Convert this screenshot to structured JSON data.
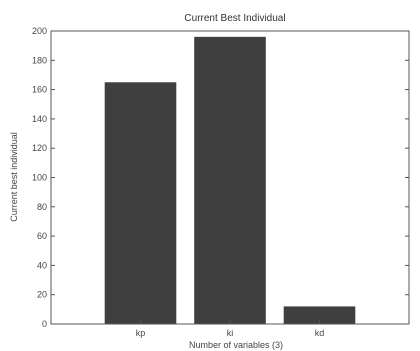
{
  "chart_data": {
    "type": "bar",
    "title": "Current Best Individual",
    "xlabel": "Number of variables (3)",
    "ylabel": "Current best individual",
    "categories": [
      "kp",
      "ki",
      "kd"
    ],
    "values": [
      165,
      196,
      12
    ],
    "ylim": [
      0,
      200
    ],
    "yticks": [
      0,
      20,
      40,
      60,
      80,
      100,
      120,
      140,
      160,
      180,
      200
    ],
    "grid": false,
    "bar_color": "#3f3f3f",
    "axis_color": "#555555"
  }
}
